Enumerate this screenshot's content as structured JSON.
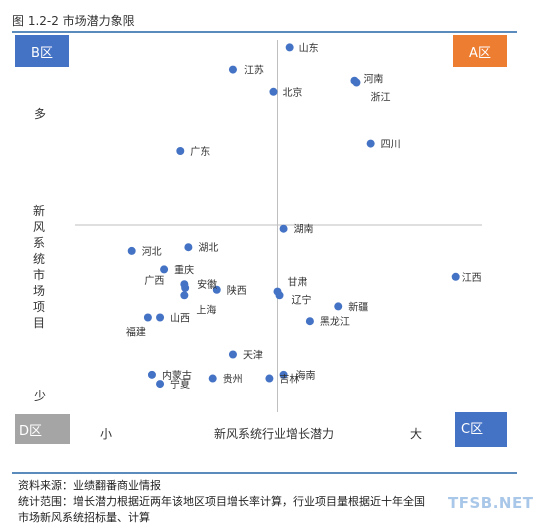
{
  "figure_title": "图 1.2-2 市场潜力象限",
  "quadrants": {
    "A": {
      "label": "A区",
      "color": "#ed7d31"
    },
    "B": {
      "label": "B区",
      "color": "#4472c4"
    },
    "C": {
      "label": "C区",
      "color": "#4472c4"
    },
    "D": {
      "label": "D区",
      "color": "#a5a5a5"
    }
  },
  "source_line": "资料来源：业绩翻番商业情报",
  "scope_line1": "统计范围：增长潜力根据近两年该地区项目增长率计算，行业项目量根据近十年全国",
  "scope_line2": "市场新风系统招标量、计算",
  "watermark": "TFSB.NET",
  "chart_data": {
    "type": "scatter",
    "xlabel": "新风系统行业增长潜力",
    "ylabel": "新风系统市场项目",
    "x_low_label": "小",
    "x_high_label": "大",
    "y_high_label": "多",
    "y_low_label": "少",
    "xlim": [
      0,
      10
    ],
    "ylim": [
      0,
      10
    ],
    "divider": {
      "x": 5,
      "y": 5
    },
    "point_color": "#4472c4",
    "points": [
      {
        "name": "山东",
        "x": 5.3,
        "y": 9.8
      },
      {
        "name": "江苏",
        "x": 3.9,
        "y": 9.2
      },
      {
        "name": "北京",
        "x": 4.9,
        "y": 8.6
      },
      {
        "name": "河南",
        "x": 6.9,
        "y": 8.9
      },
      {
        "name": "浙江",
        "x": 6.95,
        "y": 8.85
      },
      {
        "name": "四川",
        "x": 7.3,
        "y": 7.2
      },
      {
        "name": "广东",
        "x": 2.6,
        "y": 7.0
      },
      {
        "name": "湖南",
        "x": 5.15,
        "y": 4.9
      },
      {
        "name": "河北",
        "x": 1.4,
        "y": 4.3
      },
      {
        "name": "湖北",
        "x": 2.8,
        "y": 4.4
      },
      {
        "name": "江西",
        "x": 9.4,
        "y": 3.6
      },
      {
        "name": "重庆",
        "x": 2.2,
        "y": 3.8
      },
      {
        "name": "广西",
        "x": 2.7,
        "y": 3.4
      },
      {
        "name": "安徽",
        "x": 2.72,
        "y": 3.3
      },
      {
        "name": "陕西",
        "x": 3.5,
        "y": 3.25
      },
      {
        "name": "上海",
        "x": 2.7,
        "y": 3.1
      },
      {
        "name": "甘肃",
        "x": 5.0,
        "y": 3.2
      },
      {
        "name": "辽宁",
        "x": 5.05,
        "y": 3.1
      },
      {
        "name": "新疆",
        "x": 6.5,
        "y": 2.8
      },
      {
        "name": "福建",
        "x": 1.8,
        "y": 2.5
      },
      {
        "name": "山西",
        "x": 2.1,
        "y": 2.5
      },
      {
        "name": "黑龙江",
        "x": 5.8,
        "y": 2.4
      },
      {
        "name": "天津",
        "x": 3.9,
        "y": 1.5
      },
      {
        "name": "内蒙古",
        "x": 1.9,
        "y": 0.95
      },
      {
        "name": "宁夏",
        "x": 2.1,
        "y": 0.7
      },
      {
        "name": "贵州",
        "x": 3.4,
        "y": 0.85
      },
      {
        "name": "吉林",
        "x": 4.8,
        "y": 0.85
      },
      {
        "name": "海南",
        "x": 5.15,
        "y": 0.95
      }
    ]
  }
}
